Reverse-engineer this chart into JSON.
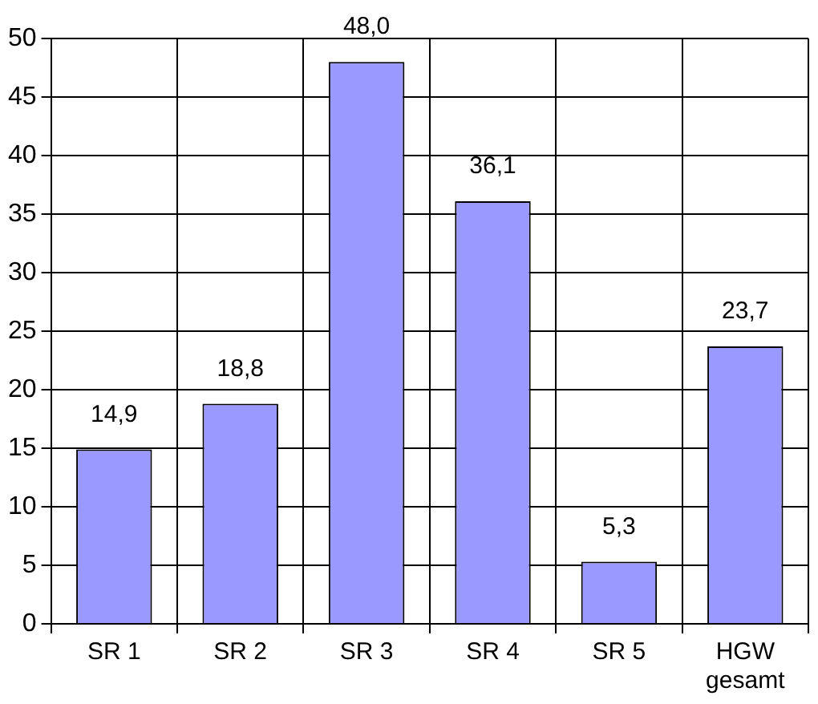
{
  "chart_data": {
    "type": "bar",
    "categories": [
      "SR 1",
      "SR 2",
      "SR 3",
      "SR 4",
      "SR 5",
      "HGW\ngesamt"
    ],
    "values": [
      14.9,
      18.8,
      48.0,
      36.1,
      5.3,
      23.7
    ],
    "value_labels": [
      "14,9",
      "18,8",
      "48,0",
      "36,1",
      "5,3",
      "23,7"
    ],
    "color": "#9999ff",
    "ylim": [
      0,
      50
    ],
    "yticks": [
      0,
      5,
      10,
      15,
      20,
      25,
      30,
      35,
      40,
      45,
      50
    ],
    "grid": true,
    "legend": false
  }
}
